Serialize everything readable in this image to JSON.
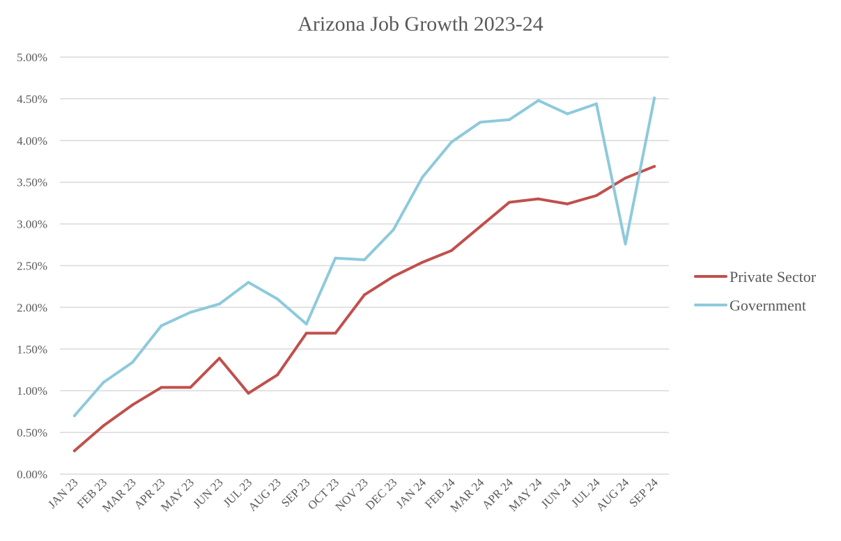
{
  "chart_data": {
    "type": "line",
    "title": "Arizona Job Growth 2023-24",
    "xlabel": "",
    "ylabel": "",
    "ylim": [
      0,
      5
    ],
    "yticks": [
      "0.00%",
      "0.50%",
      "1.00%",
      "1.50%",
      "2.00%",
      "2.50%",
      "3.00%",
      "3.50%",
      "4.00%",
      "4.50%",
      "5.00%"
    ],
    "grid": true,
    "legend_position": "right",
    "categories": [
      "JAN 23",
      "FEB 23",
      "MAR 23",
      "APR 23",
      "MAY 23",
      "JUN 23",
      "JUL 23",
      "AUG 23",
      "SEP 23",
      "OCT 23",
      "NOV 23",
      "DEC 23",
      "JAN 24",
      "FEB 24",
      "MAR 24",
      "APR 24",
      "MAY 24",
      "JUN 24",
      "JUL 24",
      "AUG 24",
      "SEP 24"
    ],
    "series": [
      {
        "name": "Private Sector",
        "color": "#C0504D",
        "values": [
          0.28,
          0.58,
          0.83,
          1.04,
          1.04,
          1.39,
          0.97,
          1.19,
          1.69,
          1.69,
          2.15,
          2.37,
          2.54,
          2.68,
          2.97,
          3.26,
          3.3,
          3.24,
          3.34,
          3.55,
          3.69
        ]
      },
      {
        "name": "Government",
        "color": "#8DCADB",
        "values": [
          0.7,
          1.1,
          1.34,
          1.78,
          1.94,
          2.04,
          2.3,
          2.1,
          1.8,
          2.59,
          2.57,
          2.93,
          3.56,
          3.98,
          4.22,
          4.25,
          4.48,
          4.32,
          4.44,
          2.76,
          4.51
        ]
      }
    ]
  }
}
